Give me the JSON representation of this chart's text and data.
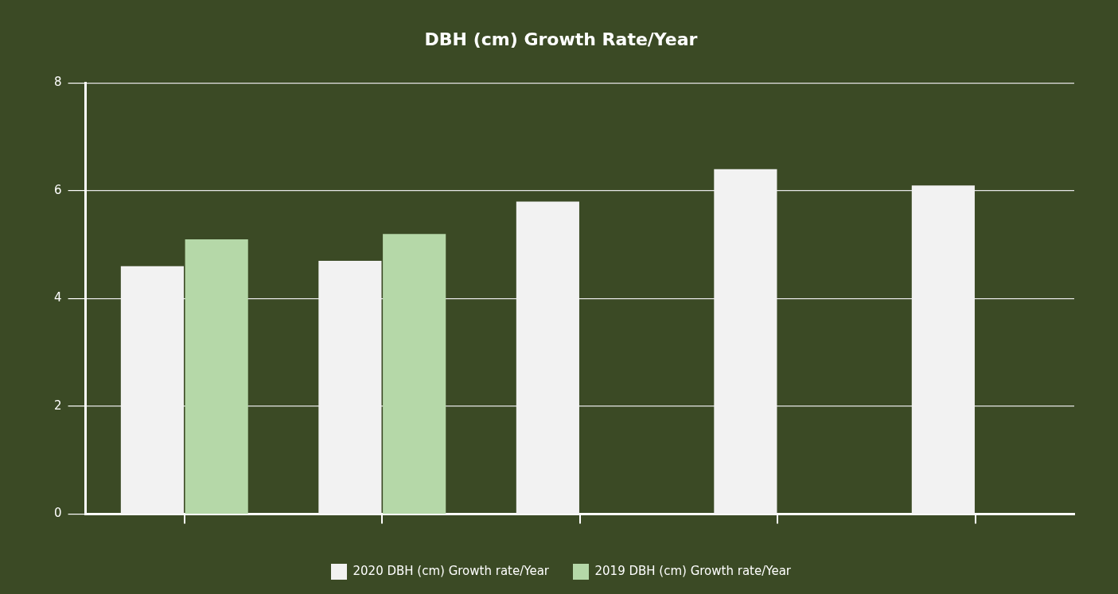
{
  "chart_data": {
    "type": "bar",
    "title": "DBH (cm) Growth Rate/Year",
    "categories": [
      null,
      null,
      null,
      null,
      null
    ],
    "series": [
      {
        "name": "2020 DBH (cm) Growth rate/Year",
        "color": "#f2f2f2",
        "values": [
          4.6,
          4.7,
          5.8,
          6.4,
          6.1
        ]
      },
      {
        "name": "2019 DBH (cm) Growth rate/Year",
        "color": "#b5d8a8",
        "values": [
          5.1,
          5.2,
          null,
          null,
          null
        ]
      }
    ],
    "ylim": [
      0,
      8
    ],
    "yticks": [
      0,
      2,
      4,
      6,
      8
    ],
    "grid": "y",
    "legend": "bottom"
  }
}
